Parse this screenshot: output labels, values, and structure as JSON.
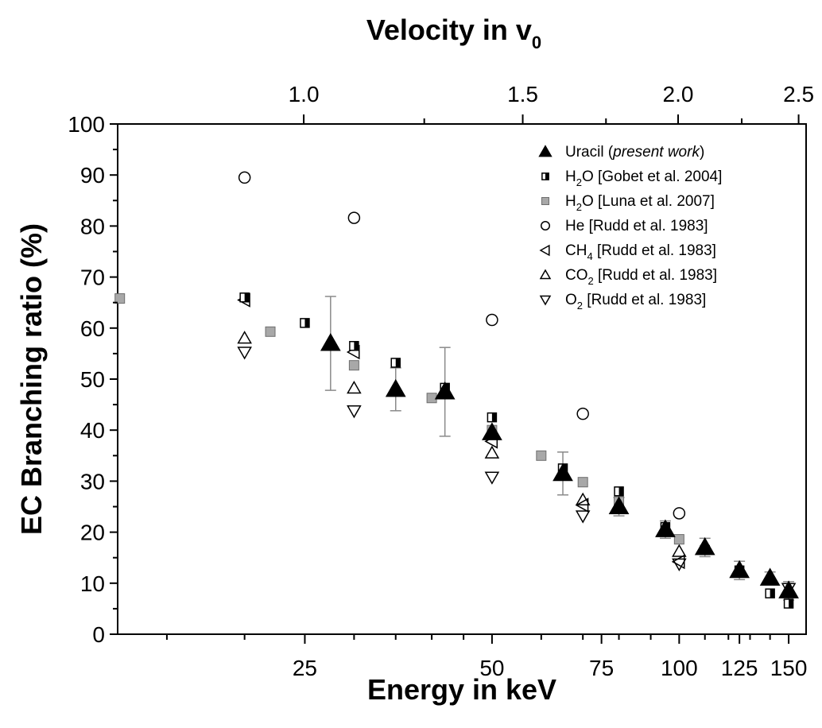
{
  "chart_data": {
    "type": "scatter",
    "title": "",
    "xlabel": "Energy in keV",
    "x2label": "Velocity in v",
    "x2label_sub": "0",
    "ylabel": "EC Branching ratio (%)",
    "xscale": "log",
    "xlim": [
      12.5,
      160
    ],
    "ylim": [
      0,
      100
    ],
    "x_ticks": [
      25,
      50,
      75,
      100,
      125,
      150
    ],
    "x_tick_labels": [
      "25",
      "50",
      "75",
      "100",
      "125",
      "150"
    ],
    "x2_ticks": [
      1.0,
      1.5,
      2.0,
      2.5
    ],
    "x2_tick_labels": [
      "1.0",
      "1.5",
      "2.0",
      "2.5"
    ],
    "x2_minor_ticks": [
      1.25,
      1.75,
      2.25
    ],
    "y_ticks": [
      0,
      10,
      20,
      30,
      40,
      50,
      60,
      70,
      80,
      90,
      100
    ],
    "y_tick_labels": [
      "0",
      "10",
      "20",
      "30",
      "40",
      "50",
      "60",
      "70",
      "80",
      "90",
      "100"
    ],
    "legend_position": "top-right",
    "grid": false,
    "series": [
      {
        "key": "uracil",
        "marker": "triangle-up-filled",
        "legend": [
          {
            "t": "Uracil  ("
          },
          {
            "t": "present work",
            "i": true
          },
          {
            "t": ")"
          }
        ],
        "points": [
          {
            "x": 27.5,
            "y": 57,
            "err": 9.2
          },
          {
            "x": 35,
            "y": 48,
            "err": 4.2
          },
          {
            "x": 42,
            "y": 47.5,
            "err": 8.7
          },
          {
            "x": 50,
            "y": 39.5
          },
          {
            "x": 65,
            "y": 31.5,
            "err": 4.2
          },
          {
            "x": 80,
            "y": 25,
            "err": 1.8
          },
          {
            "x": 95,
            "y": 20.5,
            "err": 1.7
          },
          {
            "x": 110,
            "y": 17,
            "err": 1.8
          },
          {
            "x": 125,
            "y": 12.5,
            "err": 1.8
          },
          {
            "x": 140,
            "y": 11,
            "err": 1.2
          },
          {
            "x": 150,
            "y": 8.5,
            "err": 1.8
          }
        ]
      },
      {
        "key": "h2o-gobet",
        "marker": "square-half",
        "legend": [
          {
            "t": "H"
          },
          {
            "t": "2",
            "sub": true
          },
          {
            "t": "O [Gobet et al. 2004]"
          }
        ],
        "points": [
          {
            "x": 20,
            "y": 66
          },
          {
            "x": 25,
            "y": 61
          },
          {
            "x": 30,
            "y": 56.5
          },
          {
            "x": 35,
            "y": 53.2
          },
          {
            "x": 42,
            "y": 48.3
          },
          {
            "x": 50,
            "y": 42.5
          },
          {
            "x": 65,
            "y": 32.5
          },
          {
            "x": 80,
            "y": 28
          },
          {
            "x": 95,
            "y": 21
          },
          {
            "x": 110,
            "y": 16.5
          },
          {
            "x": 125,
            "y": 12.5
          },
          {
            "x": 140,
            "y": 8
          },
          {
            "x": 150,
            "y": 6
          }
        ]
      },
      {
        "key": "h2o-luna",
        "marker": "square-gray",
        "legend": [
          {
            "t": "H"
          },
          {
            "t": "2",
            "sub": true
          },
          {
            "t": "O [Luna et al. 2007]"
          }
        ],
        "points": [
          {
            "x": 12.6,
            "y": 65.8
          },
          {
            "x": 22,
            "y": 59.3
          },
          {
            "x": 30,
            "y": 52.7
          },
          {
            "x": 40,
            "y": 46.3
          },
          {
            "x": 50,
            "y": 40
          },
          {
            "x": 60,
            "y": 35
          },
          {
            "x": 70,
            "y": 29.8
          },
          {
            "x": 80,
            "y": 26
          },
          {
            "x": 100,
            "y": 18.6
          }
        ]
      },
      {
        "key": "he-rudd",
        "marker": "circle-open",
        "legend": [
          {
            "t": "He  [Rudd et al. 1983]"
          }
        ],
        "points": [
          {
            "x": 20,
            "y": 89.5
          },
          {
            "x": 30,
            "y": 81.6
          },
          {
            "x": 50,
            "y": 61.6
          },
          {
            "x": 70,
            "y": 43.2
          },
          {
            "x": 100,
            "y": 23.7
          }
        ]
      },
      {
        "key": "ch4-rudd",
        "marker": "triangle-left-open",
        "legend": [
          {
            "t": "CH"
          },
          {
            "t": "4",
            "sub": true
          },
          {
            "t": " [Rudd et al. 1983]"
          }
        ],
        "points": [
          {
            "x": 20,
            "y": 65.5
          },
          {
            "x": 30,
            "y": 55.3
          },
          {
            "x": 50,
            "y": 37.8
          },
          {
            "x": 70,
            "y": 25.3
          },
          {
            "x": 100,
            "y": 14.2
          }
        ]
      },
      {
        "key": "co2-rudd",
        "marker": "triangle-up-open",
        "legend": [
          {
            "t": "CO"
          },
          {
            "t": "2",
            "sub": true
          },
          {
            "t": " [Rudd et al. 1983]"
          }
        ],
        "points": [
          {
            "x": 20,
            "y": 58
          },
          {
            "x": 30,
            "y": 48.2
          },
          {
            "x": 50,
            "y": 35.5
          },
          {
            "x": 70,
            "y": 26.3
          },
          {
            "x": 100,
            "y": 16.2
          }
        ]
      },
      {
        "key": "o2-rudd",
        "marker": "triangle-down-open",
        "legend": [
          {
            "t": "O"
          },
          {
            "t": "2",
            "sub": true
          },
          {
            "t": " [Rudd et al. 1983]"
          }
        ],
        "points": [
          {
            "x": 20,
            "y": 55.3
          },
          {
            "x": 30,
            "y": 43.8
          },
          {
            "x": 50,
            "y": 30.8
          },
          {
            "x": 70,
            "y": 23.2
          },
          {
            "x": 100,
            "y": 13.8
          },
          {
            "x": 150,
            "y": 9
          }
        ]
      }
    ]
  }
}
